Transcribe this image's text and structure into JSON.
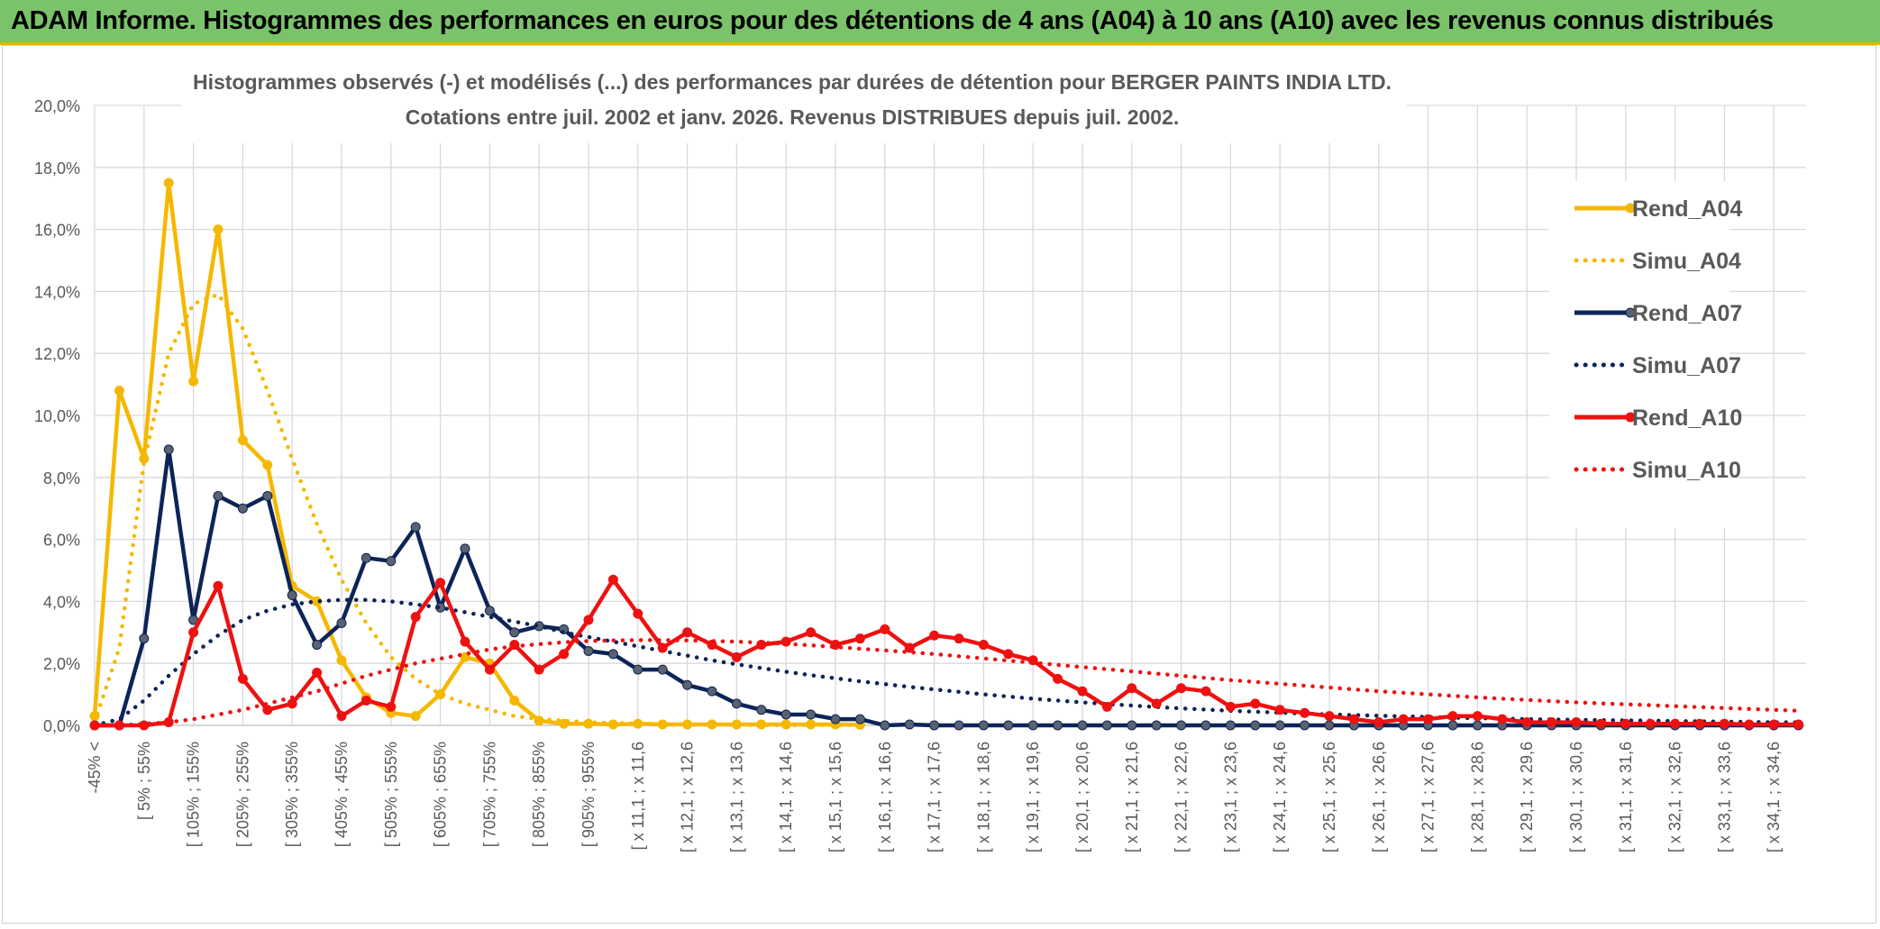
{
  "banner_title": "ADAM Informe. Histogrammes des performances en euros pour des détentions de 4 ans (A04) à 10 ans (A10) avec les revenus connus distribués",
  "colors": {
    "banner_bg": "#7ac36a",
    "banner_border": "#e8b400",
    "A04": "#f5b800",
    "A07": "#0d2458",
    "A10": "#ee1111",
    "A07_marker": "#5a6270"
  },
  "chart_data": {
    "type": "line",
    "title_line1": "Histogrammes observés (-) et modélisés (...) des performances par durées de détention pour BERGER PAINTS INDIA LTD.",
    "title_line2": "Cotations entre juil. 2002 et janv. 2026. Revenus DISTRIBUES depuis juil. 2002.",
    "ylim": [
      0,
      20
    ],
    "y_ticks": [
      "0,0%",
      "2,0%",
      "4,0%",
      "6,0%",
      "8,0%",
      "10,0%",
      "12,0%",
      "14,0%",
      "16,0%",
      "18,0%",
      "20,0%"
    ],
    "grid": true,
    "legend_position": "right",
    "x_labels": [
      "-45% <",
      "[ 5% ; 55%",
      "[ 105% ; 155%",
      "[ 205% ; 255%",
      "[ 305% ; 355%",
      "[ 405% ; 455%",
      "[ 505% ; 555%",
      "[ 605% ; 655%",
      "[ 705% ; 755%",
      "[ 805% ; 855%",
      "[ 905% ; 955%",
      "[ x 11,1 ; x 11,6",
      "[ x 12,1 ; x 12,6",
      "[ x 13,1 ; x 13,6",
      "[ x 14,1 ; x 14,6",
      "[ x 15,1 ; x 15,6",
      "[ x 16,1 ; x 16,6",
      "[ x 17,1 ; x 17,6",
      "[ x 18,1 ; x 18,6",
      "[ x 19,1 ; x 19,6",
      "[ x 20,1 ; x 20,6",
      "[ x 21,1 ; x 21,6",
      "[ x 22,1 ; x 22,6",
      "[ x 23,1 ; x 23,6",
      "[ x 24,1 ; x 24,6",
      "[ x 25,1 ; x 25,6",
      "[ x 26,1 ; x 26,6",
      "[ x 27,1 ; x 27,6",
      "[ x 28,1 ; x 28,6",
      "[ x 29,1 ; x 29,6",
      "[ x 30,1 ; x 30,6",
      "[ x 31,1 ; x 31,6",
      "[ x 32,1 ; x 32,6",
      "[ x 33,1 ; x 33,6",
      "[ x 34,1 ; x 34,6"
    ],
    "n_categories": 70,
    "series": [
      {
        "name": "Rend_A04",
        "style": "solid",
        "color": "#f5b800",
        "values": [
          0.3,
          10.8,
          8.6,
          17.5,
          11.1,
          16.0,
          9.2,
          8.4,
          4.5,
          4.0,
          2.1,
          0.9,
          0.4,
          0.3,
          1.0,
          2.2,
          2.0,
          0.8,
          0.15,
          0.05,
          0.05,
          0.03,
          0.05,
          0.03,
          0.03,
          0.03,
          0.03,
          0.03,
          0.03,
          0.03,
          0.03,
          0.02
        ]
      },
      {
        "name": "Simu_A04",
        "style": "dotted",
        "color": "#f5b800",
        "values": [
          0.1,
          2.5,
          8.5,
          12.0,
          13.6,
          13.9,
          12.8,
          10.8,
          8.6,
          6.5,
          4.7,
          3.3,
          2.2,
          1.5,
          1.0,
          0.7,
          0.5,
          0.3,
          0.2,
          0.15,
          0.1,
          0.08,
          0.06,
          0.04,
          0.03,
          0.02,
          0.02,
          0.01,
          0.01,
          0.01,
          0.01,
          0.01
        ]
      },
      {
        "name": "Rend_A07",
        "style": "solid",
        "color": "#0d2458",
        "values": [
          0.0,
          0.0,
          2.8,
          8.9,
          3.4,
          7.4,
          7.0,
          7.4,
          4.2,
          2.6,
          3.3,
          5.4,
          5.3,
          6.4,
          3.8,
          5.7,
          3.7,
          3.0,
          3.2,
          3.1,
          2.4,
          2.3,
          1.8,
          1.8,
          1.3,
          1.1,
          0.7,
          0.5,
          0.35,
          0.35,
          0.2,
          0.2,
          0.0,
          0.03,
          0.0,
          0.0,
          0.0,
          0.0,
          0.0,
          0.0,
          0.0,
          0.0,
          0.0,
          0.0,
          0.0,
          0.0,
          0.0,
          0.0,
          0.0,
          0.0,
          0.0,
          0.0,
          0.0,
          0.0,
          0.0,
          0.0,
          0.0,
          0.0,
          0.0,
          0.0,
          0.0,
          0.0,
          0.0,
          0.0,
          0.0,
          0.0,
          0.0,
          0.0,
          0.0,
          0.0
        ]
      },
      {
        "name": "Simu_A07",
        "style": "dotted",
        "color": "#0d2458",
        "values": [
          0.0,
          0.2,
          0.8,
          1.6,
          2.3,
          2.9,
          3.4,
          3.7,
          3.9,
          4.0,
          4.05,
          4.05,
          4.0,
          3.9,
          3.8,
          3.65,
          3.5,
          3.35,
          3.2,
          3.0,
          2.85,
          2.7,
          2.55,
          2.4,
          2.25,
          2.1,
          1.97,
          1.85,
          1.73,
          1.62,
          1.52,
          1.42,
          1.33,
          1.24,
          1.16,
          1.08,
          1.0,
          0.93,
          0.86,
          0.8,
          0.74,
          0.69,
          0.64,
          0.59,
          0.55,
          0.51,
          0.47,
          0.44,
          0.41,
          0.38,
          0.35,
          0.33,
          0.31,
          0.29,
          0.27,
          0.25,
          0.23,
          0.22,
          0.2,
          0.19,
          0.18,
          0.17,
          0.16,
          0.15,
          0.14,
          0.13,
          0.12,
          0.11,
          0.1,
          0.1
        ]
      },
      {
        "name": "Rend_A10",
        "style": "solid",
        "color": "#ee1111",
        "values": [
          0.0,
          0.0,
          0.0,
          0.1,
          3.0,
          4.5,
          1.5,
          0.5,
          0.7,
          1.7,
          0.3,
          0.8,
          0.6,
          3.5,
          4.6,
          2.7,
          1.8,
          2.6,
          1.8,
          2.3,
          3.4,
          4.7,
          3.6,
          2.5,
          3.0,
          2.6,
          2.2,
          2.6,
          2.7,
          3.0,
          2.6,
          2.8,
          3.1,
          2.5,
          2.9,
          2.8,
          2.6,
          2.3,
          2.1,
          1.5,
          1.1,
          0.6,
          1.2,
          0.7,
          1.2,
          1.1,
          0.6,
          0.7,
          0.5,
          0.4,
          0.3,
          0.2,
          0.1,
          0.2,
          0.2,
          0.3,
          0.3,
          0.2,
          0.1,
          0.1,
          0.1,
          0.05,
          0.05,
          0.05,
          0.05,
          0.05,
          0.05,
          0.03,
          0.03,
          0.03
        ]
      },
      {
        "name": "Simu_A10",
        "style": "dotted",
        "color": "#ee1111",
        "values": [
          0.0,
          0.0,
          0.05,
          0.1,
          0.2,
          0.35,
          0.5,
          0.7,
          0.9,
          1.1,
          1.35,
          1.6,
          1.8,
          2.0,
          2.15,
          2.3,
          2.45,
          2.55,
          2.62,
          2.68,
          2.72,
          2.74,
          2.75,
          2.75,
          2.74,
          2.72,
          2.7,
          2.67,
          2.63,
          2.58,
          2.53,
          2.47,
          2.42,
          2.36,
          2.3,
          2.23,
          2.16,
          2.09,
          2.02,
          1.95,
          1.88,
          1.81,
          1.74,
          1.67,
          1.6,
          1.53,
          1.46,
          1.4,
          1.34,
          1.28,
          1.22,
          1.16,
          1.1,
          1.05,
          1.0,
          0.95,
          0.9,
          0.86,
          0.82,
          0.78,
          0.74,
          0.71,
          0.68,
          0.65,
          0.62,
          0.59,
          0.56,
          0.53,
          0.5,
          0.47
        ]
      }
    ]
  }
}
